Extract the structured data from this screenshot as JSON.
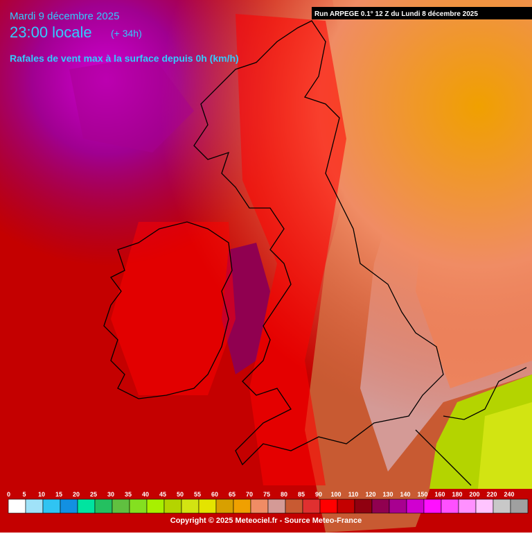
{
  "header": {
    "date": "Mardi 9 décembre 2025",
    "time": "23:00 locale",
    "lead": "(+ 34h)",
    "field": "Rafales de vent max à la surface depuis 0h (km/h)",
    "run": "Run ARPEGE 0.1° 12 Z du Lundi 8 décembre 2025"
  },
  "legend": {
    "labels": [
      0,
      5,
      10,
      15,
      20,
      25,
      30,
      35,
      40,
      45,
      50,
      55,
      60,
      65,
      70,
      75,
      80,
      85,
      90,
      100,
      110,
      120,
      130,
      140,
      150,
      160,
      180,
      200,
      220,
      240
    ],
    "colors": [
      "#ffffff",
      "#a0e2f8",
      "#30c4f2",
      "#1290e2",
      "#00e4a0",
      "#24c060",
      "#60c040",
      "#84e020",
      "#a8f000",
      "#b4d400",
      "#d2e412",
      "#e4e400",
      "#d8a000",
      "#f0a000",
      "#f08c64",
      "#d49a96",
      "#c85a32",
      "#e03030",
      "#ff0000",
      "#c40000",
      "#900010",
      "#900050",
      "#a80090",
      "#d000d0",
      "#ff10ff",
      "#ff50ff",
      "#ff90ff",
      "#ffc4ff",
      "#c8c8c8",
      "#a0a0a0"
    ]
  },
  "footer": {
    "copyright": "Copyright © 2025 Meteociel.fr - Source Meteo-France"
  }
}
